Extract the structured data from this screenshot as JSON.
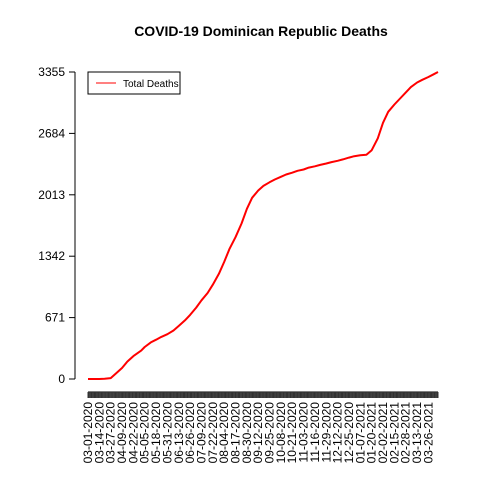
{
  "chart_data": {
    "type": "line",
    "title": "COVID-19 Dominican Republic Deaths",
    "xlabel": "",
    "ylabel": "",
    "ylim": [
      0,
      3355
    ],
    "yticks": [
      0,
      671,
      1342,
      2013,
      2684,
      3355
    ],
    "xticks": [
      "03-01-2020",
      "03-14-2020",
      "03-27-2020",
      "04-09-2020",
      "04-22-2020",
      "05-05-2020",
      "05-18-2020",
      "05-31-2020",
      "06-13-2020",
      "06-26-2020",
      "07-09-2020",
      "07-22-2020",
      "08-04-2020",
      "08-17-2020",
      "08-30-2020",
      "09-12-2020",
      "09-25-2020",
      "10-08-2020",
      "10-21-2020",
      "11-03-2020",
      "11-16-2020",
      "11-29-2020",
      "12-12-2020",
      "12-25-2020",
      "01-07-2021",
      "01-20-2021",
      "02-02-2021",
      "02-15-2021",
      "02-28-2021",
      "03-13-2021",
      "03-26-2021"
    ],
    "xlim": [
      "03-01-2020",
      "04-06-2021"
    ],
    "legend": {
      "position": "top-left",
      "entries": [
        "Total Deaths"
      ]
    },
    "colors": {
      "series": "#ff0000"
    },
    "grid": false,
    "series": [
      {
        "name": "Total Deaths",
        "points": [
          [
            "03-01-2020",
            0
          ],
          [
            "03-14-2020",
            0
          ],
          [
            "03-20-2020",
            2
          ],
          [
            "03-27-2020",
            10
          ],
          [
            "04-02-2020",
            60
          ],
          [
            "04-09-2020",
            120
          ],
          [
            "04-15-2020",
            190
          ],
          [
            "04-22-2020",
            250
          ],
          [
            "05-01-2020",
            310
          ],
          [
            "05-05-2020",
            350
          ],
          [
            "05-12-2020",
            400
          ],
          [
            "05-18-2020",
            430
          ],
          [
            "05-24-2020",
            460
          ],
          [
            "05-31-2020",
            490
          ],
          [
            "06-07-2020",
            530
          ],
          [
            "06-13-2020",
            580
          ],
          [
            "06-20-2020",
            640
          ],
          [
            "06-26-2020",
            700
          ],
          [
            "07-03-2020",
            780
          ],
          [
            "07-09-2020",
            860
          ],
          [
            "07-16-2020",
            940
          ],
          [
            "07-22-2020",
            1030
          ],
          [
            "07-29-2020",
            1150
          ],
          [
            "08-04-2020",
            1280
          ],
          [
            "08-10-2020",
            1420
          ],
          [
            "08-17-2020",
            1550
          ],
          [
            "08-24-2020",
            1700
          ],
          [
            "08-30-2020",
            1860
          ],
          [
            "09-05-2020",
            1980
          ],
          [
            "09-12-2020",
            2060
          ],
          [
            "09-18-2020",
            2110
          ],
          [
            "09-25-2020",
            2150
          ],
          [
            "10-01-2020",
            2180
          ],
          [
            "10-08-2020",
            2210
          ],
          [
            "10-14-2020",
            2235
          ],
          [
            "10-21-2020",
            2255
          ],
          [
            "10-27-2020",
            2275
          ],
          [
            "11-03-2020",
            2290
          ],
          [
            "11-09-2020",
            2310
          ],
          [
            "11-16-2020",
            2325
          ],
          [
            "11-22-2020",
            2340
          ],
          [
            "11-29-2020",
            2355
          ],
          [
            "12-05-2020",
            2370
          ],
          [
            "12-12-2020",
            2385
          ],
          [
            "12-18-2020",
            2400
          ],
          [
            "12-25-2020",
            2420
          ],
          [
            "12-31-2020",
            2435
          ],
          [
            "01-07-2021",
            2445
          ],
          [
            "01-14-2021",
            2450
          ],
          [
            "01-20-2021",
            2500
          ],
          [
            "01-27-2021",
            2630
          ],
          [
            "02-02-2021",
            2800
          ],
          [
            "02-08-2021",
            2920
          ],
          [
            "02-15-2021",
            3000
          ],
          [
            "02-21-2021",
            3060
          ],
          [
            "02-28-2021",
            3130
          ],
          [
            "03-06-2021",
            3190
          ],
          [
            "03-13-2021",
            3240
          ],
          [
            "03-19-2021",
            3270
          ],
          [
            "03-26-2021",
            3300
          ],
          [
            "04-01-2021",
            3330
          ],
          [
            "04-06-2021",
            3355
          ]
        ]
      }
    ]
  }
}
